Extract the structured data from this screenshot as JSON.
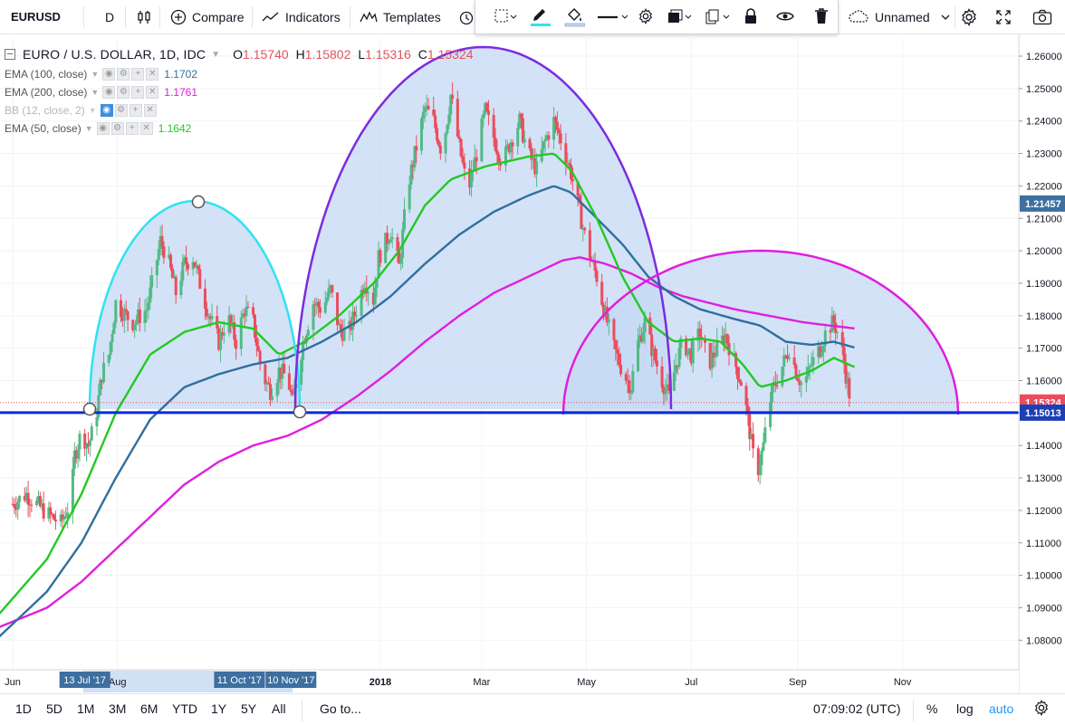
{
  "toolbar": {
    "symbol": "EURUSD",
    "interval": "D",
    "compare": "Compare",
    "indicators": "Indicators",
    "templates": "Templates",
    "layout_name": "Unnamed"
  },
  "legend": {
    "title": "EURO / U.S. DOLLAR, 1D, IDC",
    "o_label": "O",
    "o_value": "1.15740",
    "h_label": "H",
    "h_value": "1.15802",
    "l_label": "L",
    "l_value": "1.15316",
    "c_label": "C",
    "c_value": "1.15324",
    "indicators": [
      {
        "label": "EMA (100, close)",
        "value": "1.1702",
        "color": "#2f6f9f"
      },
      {
        "label": "EMA (200, close)",
        "value": "1.1761",
        "color": "#e01ee0"
      },
      {
        "label": "BB (12, close, 2)",
        "value": "",
        "color": "#b2b5be"
      },
      {
        "label": "EMA (50, close)",
        "value": "1.1642",
        "color": "#22c922"
      }
    ]
  },
  "bottom": {
    "ranges": [
      "1D",
      "5D",
      "1M",
      "3M",
      "6M",
      "YTD",
      "1Y",
      "5Y",
      "All"
    ],
    "goto": "Go to...",
    "time": "07:09:02 (UTC)",
    "pct": "%",
    "log": "log",
    "auto": "auto"
  },
  "colors": {
    "up": "#53b987",
    "down": "#eb4d5c",
    "ema50": "#22c922",
    "ema100": "#2f6f9f",
    "ema200": "#e01ee0",
    "shade": "#c4d8f3",
    "neckline": "#0b2ad9",
    "arc1": "#2ee3f2",
    "arc2": "#7b2be0",
    "arc3": "#e01ee0"
  },
  "chart_data": {
    "type": "candlestick",
    "title": "EURO / U.S. DOLLAR, 1D, IDC",
    "y_range": [
      1.073,
      1.263
    ],
    "y_ticks": [
      "1.26000",
      "1.25000",
      "1.24000",
      "1.23000",
      "1.22000",
      "1.21000",
      "1.20000",
      "1.19000",
      "1.18000",
      "1.17000",
      "1.16000",
      "1.15000",
      "1.14000",
      "1.13000",
      "1.12000",
      "1.11000",
      "1.10000",
      "1.09000",
      "1.08000"
    ],
    "x_labels": [
      {
        "label": "Jun",
        "day": 0
      },
      {
        "label": "Aug",
        "day": 61
      },
      {
        "label": "2018",
        "day": 214
      },
      {
        "label": "Mar",
        "day": 273
      },
      {
        "label": "May",
        "day": 334
      },
      {
        "label": "Jul",
        "day": 395
      },
      {
        "label": "Sep",
        "day": 457
      },
      {
        "label": "Nov",
        "day": 518
      }
    ],
    "highlighted_dates": [
      {
        "label": "13 Jul '17",
        "day": 42
      },
      {
        "label": "11 Oct '17",
        "day": 132
      },
      {
        "label": "10 Nov '17",
        "day": 162
      }
    ],
    "price_labels": [
      {
        "label": "1.21457",
        "value": 1.21457
      },
      {
        "label": "1.15324",
        "value": 1.15324
      },
      {
        "label": "1.15013",
        "value": 1.15013
      }
    ],
    "price_key_points": [
      [
        0,
        1.122
      ],
      [
        8,
        1.125
      ],
      [
        20,
        1.119
      ],
      [
        28,
        1.116
      ],
      [
        34,
        1.123
      ],
      [
        36,
        1.137
      ],
      [
        40,
        1.144
      ],
      [
        44,
        1.14
      ],
      [
        48,
        1.147
      ],
      [
        52,
        1.162
      ],
      [
        56,
        1.168
      ],
      [
        60,
        1.184
      ],
      [
        66,
        1.18
      ],
      [
        70,
        1.178
      ],
      [
        78,
        1.182
      ],
      [
        82,
        1.192
      ],
      [
        86,
        1.203
      ],
      [
        90,
        1.198
      ],
      [
        95,
        1.187
      ],
      [
        100,
        1.196
      ],
      [
        105,
        1.198
      ],
      [
        110,
        1.188
      ],
      [
        115,
        1.179
      ],
      [
        120,
        1.172
      ],
      [
        125,
        1.18
      ],
      [
        130,
        1.172
      ],
      [
        135,
        1.182
      ],
      [
        140,
        1.178
      ],
      [
        145,
        1.162
      ],
      [
        150,
        1.157
      ],
      [
        155,
        1.163
      ],
      [
        160,
        1.161
      ],
      [
        163,
        1.153
      ],
      [
        166,
        1.164
      ],
      [
        170,
        1.174
      ],
      [
        175,
        1.184
      ],
      [
        180,
        1.182
      ],
      [
        185,
        1.188
      ],
      [
        190,
        1.176
      ],
      [
        195,
        1.174
      ],
      [
        200,
        1.182
      ],
      [
        205,
        1.191
      ],
      [
        210,
        1.185
      ],
      [
        213,
        1.198
      ],
      [
        220,
        1.206
      ],
      [
        225,
        1.195
      ],
      [
        230,
        1.22
      ],
      [
        235,
        1.232
      ],
      [
        240,
        1.244
      ],
      [
        245,
        1.24
      ],
      [
        250,
        1.23
      ],
      [
        255,
        1.248
      ],
      [
        260,
        1.232
      ],
      [
        265,
        1.218
      ],
      [
        270,
        1.23
      ],
      [
        275,
        1.243
      ],
      [
        280,
        1.235
      ],
      [
        285,
        1.227
      ],
      [
        290,
        1.234
      ],
      [
        295,
        1.24
      ],
      [
        300,
        1.23
      ],
      [
        305,
        1.225
      ],
      [
        310,
        1.234
      ],
      [
        315,
        1.24
      ],
      [
        320,
        1.233
      ],
      [
        325,
        1.224
      ],
      [
        330,
        1.212
      ],
      [
        335,
        1.2
      ],
      [
        340,
        1.192
      ],
      [
        345,
        1.18
      ],
      [
        350,
        1.17
      ],
      [
        355,
        1.163
      ],
      [
        360,
        1.158
      ],
      [
        363,
        1.17
      ],
      [
        368,
        1.178
      ],
      [
        373,
        1.168
      ],
      [
        378,
        1.16
      ],
      [
        382,
        1.155
      ],
      [
        386,
        1.165
      ],
      [
        390,
        1.172
      ],
      [
        395,
        1.168
      ],
      [
        400,
        1.175
      ],
      [
        405,
        1.165
      ],
      [
        410,
        1.17
      ],
      [
        415,
        1.174
      ],
      [
        420,
        1.166
      ],
      [
        425,
        1.158
      ],
      [
        428,
        1.148
      ],
      [
        431,
        1.137
      ],
      [
        434,
        1.133
      ],
      [
        437,
        1.14
      ],
      [
        440,
        1.152
      ],
      [
        443,
        1.158
      ],
      [
        447,
        1.163
      ],
      [
        452,
        1.17
      ],
      [
        456,
        1.163
      ],
      [
        460,
        1.158
      ],
      [
        465,
        1.165
      ],
      [
        470,
        1.17
      ],
      [
        474,
        1.176
      ],
      [
        478,
        1.178
      ],
      [
        482,
        1.172
      ],
      [
        485,
        1.162
      ],
      [
        487,
        1.156
      ],
      [
        488,
        1.15324
      ]
    ],
    "ema50_points": [
      [
        -8,
        1.088
      ],
      [
        20,
        1.105
      ],
      [
        40,
        1.125
      ],
      [
        60,
        1.15
      ],
      [
        80,
        1.168
      ],
      [
        100,
        1.175
      ],
      [
        120,
        1.178
      ],
      [
        140,
        1.176
      ],
      [
        155,
        1.168
      ],
      [
        170,
        1.172
      ],
      [
        190,
        1.18
      ],
      [
        210,
        1.19
      ],
      [
        225,
        1.2
      ],
      [
        240,
        1.214
      ],
      [
        255,
        1.222
      ],
      [
        275,
        1.226
      ],
      [
        300,
        1.229
      ],
      [
        315,
        1.23
      ],
      [
        325,
        1.225
      ],
      [
        340,
        1.21
      ],
      [
        355,
        1.192
      ],
      [
        370,
        1.178
      ],
      [
        385,
        1.172
      ],
      [
        400,
        1.173
      ],
      [
        412,
        1.172
      ],
      [
        425,
        1.165
      ],
      [
        435,
        1.158
      ],
      [
        450,
        1.16
      ],
      [
        465,
        1.163
      ],
      [
        478,
        1.167
      ],
      [
        490,
        1.1642
      ]
    ],
    "ema100_points": [
      [
        -8,
        1.081
      ],
      [
        20,
        1.095
      ],
      [
        40,
        1.11
      ],
      [
        60,
        1.13
      ],
      [
        80,
        1.148
      ],
      [
        100,
        1.158
      ],
      [
        120,
        1.162
      ],
      [
        140,
        1.165
      ],
      [
        160,
        1.167
      ],
      [
        180,
        1.172
      ],
      [
        200,
        1.178
      ],
      [
        220,
        1.186
      ],
      [
        240,
        1.196
      ],
      [
        260,
        1.205
      ],
      [
        280,
        1.212
      ],
      [
        300,
        1.217
      ],
      [
        315,
        1.22
      ],
      [
        325,
        1.218
      ],
      [
        340,
        1.21
      ],
      [
        355,
        1.202
      ],
      [
        370,
        1.192
      ],
      [
        385,
        1.186
      ],
      [
        400,
        1.182
      ],
      [
        420,
        1.179
      ],
      [
        435,
        1.177
      ],
      [
        450,
        1.172
      ],
      [
        465,
        1.171
      ],
      [
        478,
        1.172
      ],
      [
        490,
        1.1702
      ]
    ],
    "ema200_points": [
      [
        -8,
        1.084
      ],
      [
        20,
        1.09
      ],
      [
        40,
        1.098
      ],
      [
        60,
        1.108
      ],
      [
        80,
        1.118
      ],
      [
        100,
        1.128
      ],
      [
        120,
        1.135
      ],
      [
        140,
        1.14
      ],
      [
        160,
        1.143
      ],
      [
        180,
        1.148
      ],
      [
        200,
        1.155
      ],
      [
        220,
        1.163
      ],
      [
        240,
        1.172
      ],
      [
        260,
        1.18
      ],
      [
        280,
        1.187
      ],
      [
        300,
        1.192
      ],
      [
        320,
        1.197
      ],
      [
        330,
        1.198
      ],
      [
        345,
        1.196
      ],
      [
        360,
        1.193
      ],
      [
        375,
        1.189
      ],
      [
        390,
        1.186
      ],
      [
        405,
        1.184
      ],
      [
        420,
        1.182
      ],
      [
        440,
        1.18
      ],
      [
        460,
        1.178
      ],
      [
        475,
        1.177
      ],
      [
        490,
        1.1761
      ]
    ],
    "neckline": 1.15013
  }
}
